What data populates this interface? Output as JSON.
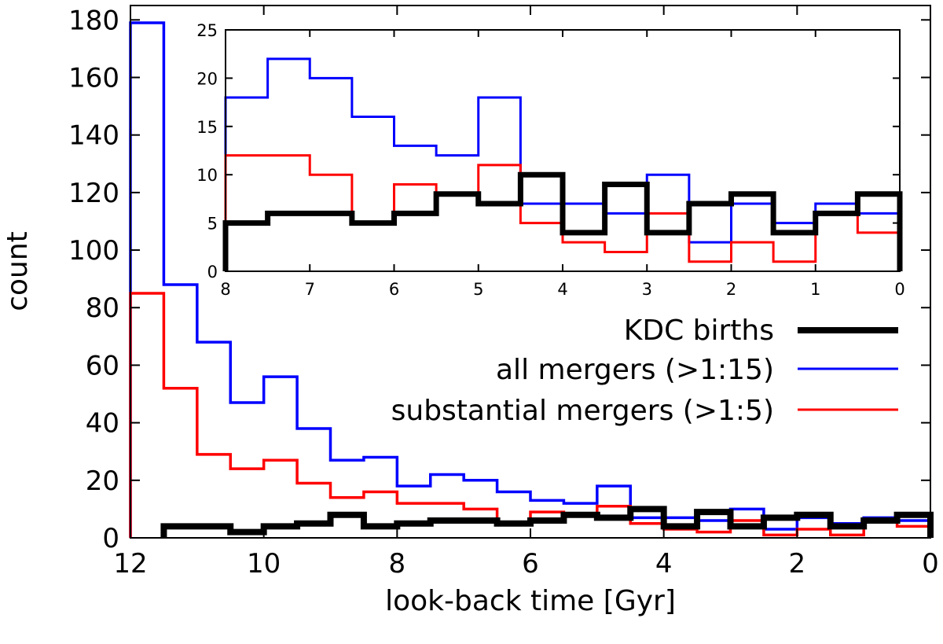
{
  "chart_data": {
    "type": "histogram",
    "main": {
      "xlabel": "look-back time [Gyr]",
      "ylabel": "count",
      "xlim": [
        12,
        0
      ],
      "ylim": [
        0,
        185
      ],
      "xticks": [
        12,
        10,
        8,
        6,
        4,
        2,
        0
      ],
      "yticks": [
        0,
        20,
        40,
        60,
        80,
        100,
        120,
        140,
        160,
        180
      ],
      "bin_edges": [
        12,
        11.5,
        11,
        10.5,
        10,
        9.5,
        9,
        8.5,
        8,
        7.5,
        7,
        6.5,
        6,
        5.5,
        5,
        4.5,
        4,
        3.5,
        3,
        2.5,
        2,
        1.5,
        1,
        0.5,
        0
      ],
      "series": [
        {
          "name": "all mergers (>1:15)",
          "color": "#0000ff",
          "stroke": "thin",
          "values": [
            179,
            88,
            68,
            47,
            56,
            38,
            27,
            28,
            18,
            22,
            20,
            16,
            13,
            12,
            18,
            7,
            7,
            6,
            10,
            3,
            7,
            5,
            7,
            6
          ]
        },
        {
          "name": "substantial mergers (>1:5)",
          "color": "#ff0000",
          "stroke": "thin",
          "values": [
            85,
            52,
            29,
            24,
            27,
            19,
            14,
            16,
            12,
            12,
            10,
            5,
            9,
            8,
            11,
            5,
            3,
            2,
            6,
            1,
            3,
            1,
            6,
            4
          ]
        },
        {
          "name": "KDC births",
          "color": "#000000",
          "stroke": "thick",
          "values": [
            0,
            4,
            4,
            2,
            4,
            5,
            8,
            4,
            5,
            6,
            6,
            5,
            6,
            8,
            7,
            10,
            4,
            9,
            4,
            7,
            8,
            4,
            6,
            8
          ]
        }
      ]
    },
    "inset": {
      "xlim": [
        8,
        0
      ],
      "ylim": [
        0,
        25
      ],
      "xticks": [
        8,
        7,
        6,
        5,
        4,
        3,
        2,
        1,
        0
      ],
      "yticks": [
        0,
        5,
        10,
        15,
        20,
        25
      ],
      "bin_edges": [
        8,
        7.5,
        7,
        6.5,
        6,
        5.5,
        5,
        4.5,
        4,
        3.5,
        3,
        2.5,
        2,
        1.5,
        1,
        0.5,
        0
      ],
      "series": [
        {
          "name": "all mergers (>1:15)",
          "color": "#0000ff",
          "stroke": "thin",
          "values": [
            18,
            22,
            20,
            16,
            13,
            12,
            18,
            7,
            7,
            6,
            10,
            3,
            7,
            5,
            7,
            6
          ]
        },
        {
          "name": "substantial mergers (>1:5)",
          "color": "#ff0000",
          "stroke": "thin",
          "values": [
            12,
            12,
            10,
            5,
            9,
            8,
            11,
            5,
            3,
            2,
            6,
            1,
            3,
            1,
            6,
            4
          ]
        },
        {
          "name": "KDC births",
          "color": "#000000",
          "stroke": "thick",
          "values": [
            5,
            6,
            6,
            5,
            6,
            8,
            7,
            10,
            4,
            9,
            4,
            7,
            8,
            4,
            6,
            8
          ]
        }
      ]
    },
    "legend": {
      "placement": "right, below inset",
      "entries": [
        {
          "label": "KDC births",
          "color": "#000000",
          "stroke": "thick"
        },
        {
          "label": "all mergers (>1:15)",
          "color": "#0000ff",
          "stroke": "thin"
        },
        {
          "label": "substantial mergers (>1:5)",
          "color": "#ff0000",
          "stroke": "thin"
        }
      ]
    }
  }
}
